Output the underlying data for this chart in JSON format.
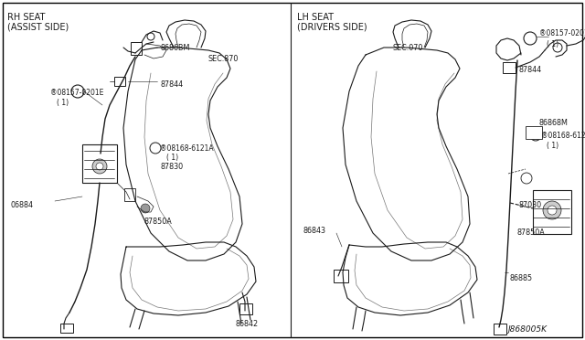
{
  "bg_color": "#f5f5f0",
  "border_color": "#000000",
  "fig_width": 6.4,
  "fig_height": 3.72,
  "dpi": 100,
  "left_header": [
    "RH SEAT",
    "(ASSIST SIDE)"
  ],
  "right_header": [
    "LH SEAT",
    "(DRIVERS SIDE)"
  ],
  "left_sec": "SEC.870",
  "right_sec": "SEC.070",
  "diagram_id": "J868005K",
  "font_size_header": 7.0,
  "font_size_part": 5.8,
  "font_size_id": 6.5
}
